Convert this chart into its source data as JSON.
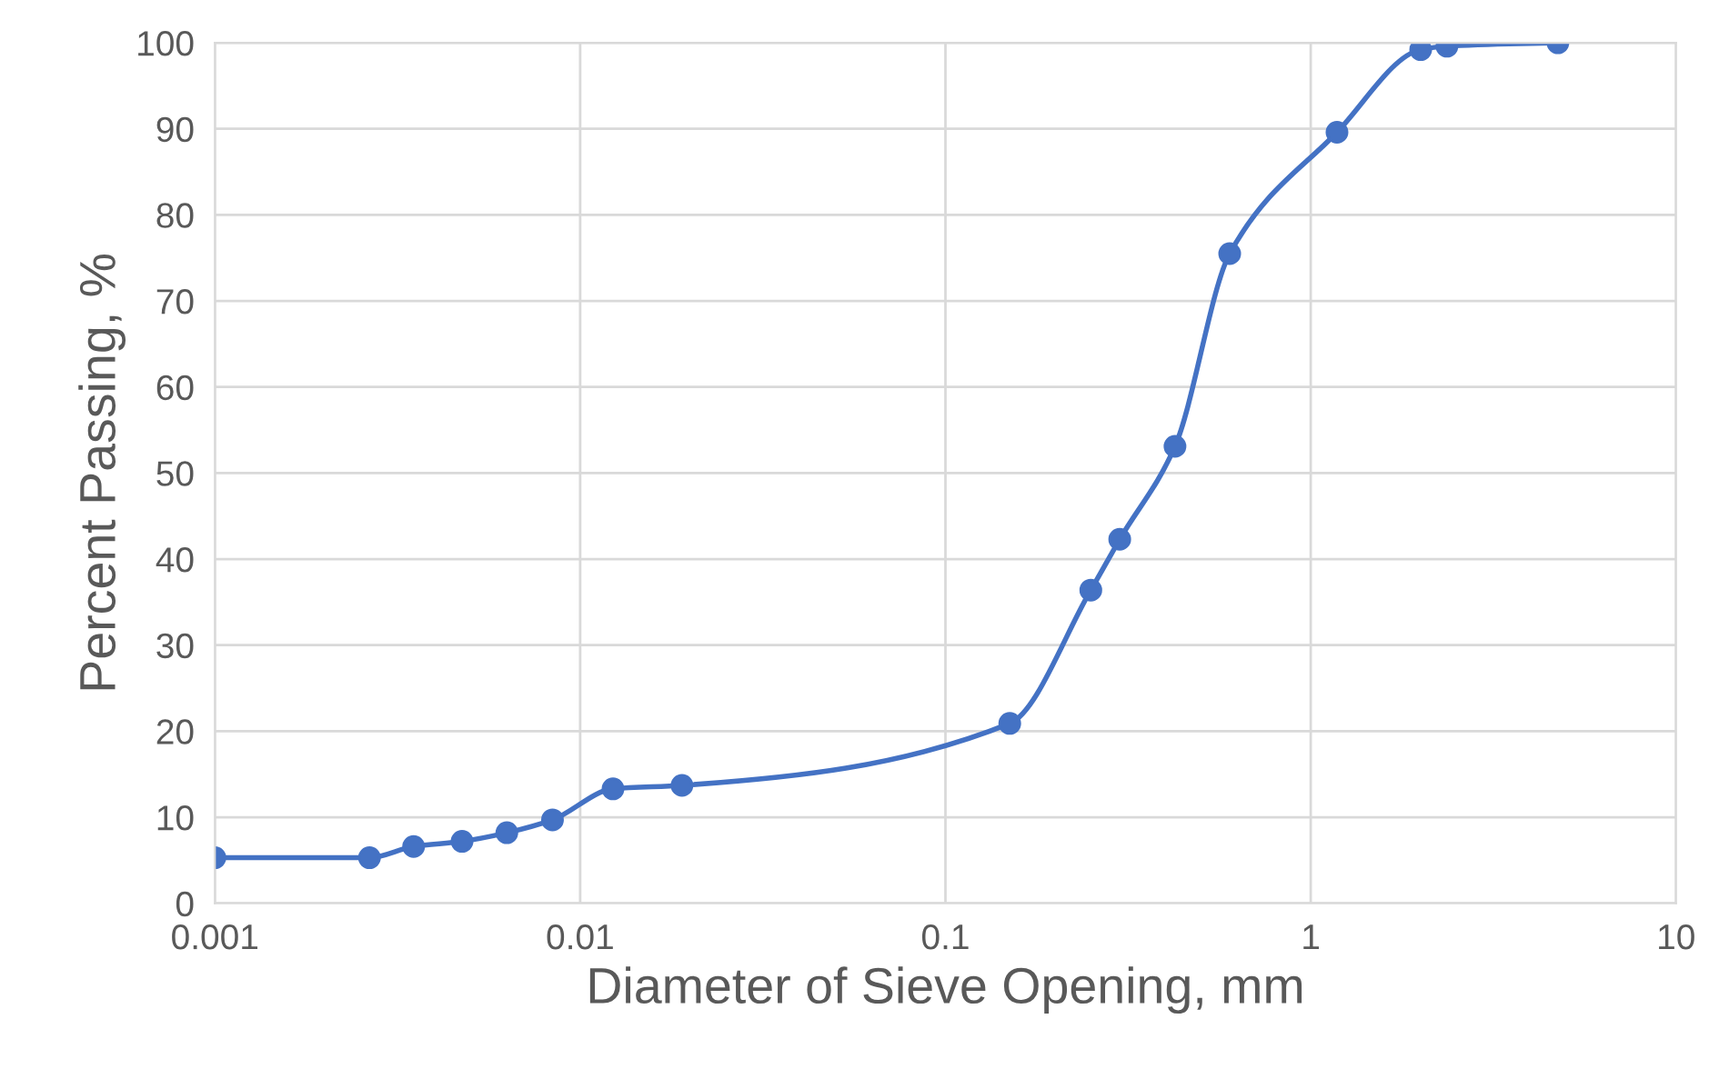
{
  "chart_data": {
    "type": "line",
    "xlabel": "Diameter of Sieve Opening, mm",
    "ylabel": "Percent Passing, %",
    "log": "x",
    "grid": true,
    "marker": "circle",
    "line_style": "solid",
    "xlim": [
      0.001,
      10
    ],
    "xticks": [
      0.001,
      0.01,
      0.1,
      1,
      10
    ],
    "ylim": [
      0,
      100
    ],
    "yticks": [
      0,
      10,
      20,
      30,
      40,
      50,
      60,
      70,
      80,
      90,
      100
    ],
    "x": [
      0.001,
      0.00265,
      0.0035,
      0.00475,
      0.0063,
      0.0084,
      0.0123,
      0.019,
      0.15,
      0.25,
      0.3,
      0.425,
      0.6,
      1.18,
      2.0,
      2.36,
      4.75
    ],
    "series": [
      {
        "color": "#4472c4",
        "values": [
          5.3,
          5.3,
          6.6,
          7.2,
          8.2,
          9.7,
          13.3,
          13.7,
          20.9,
          36.4,
          42.3,
          53.1,
          75.5,
          89.6,
          99.2,
          99.6,
          100
        ]
      }
    ]
  }
}
